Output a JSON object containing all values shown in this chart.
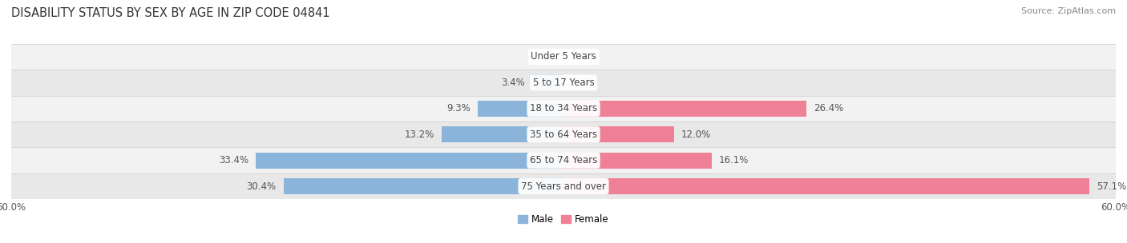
{
  "title": "DISABILITY STATUS BY SEX BY AGE IN ZIP CODE 04841",
  "source": "Source: ZipAtlas.com",
  "categories": [
    "Under 5 Years",
    "5 to 17 Years",
    "18 to 34 Years",
    "35 to 64 Years",
    "65 to 74 Years",
    "75 Years and over"
  ],
  "male_values": [
    0.0,
    3.4,
    9.3,
    13.2,
    33.4,
    30.4
  ],
  "female_values": [
    0.0,
    0.0,
    26.4,
    12.0,
    16.1,
    57.1
  ],
  "male_color": "#8ab4d9",
  "female_color": "#f08098",
  "row_bg_colors": [
    "#f2f2f2",
    "#e8e8e8"
  ],
  "xlim": 60.0,
  "bar_height": 0.62,
  "title_fontsize": 10.5,
  "label_fontsize": 8.5,
  "value_fontsize": 8.5,
  "tick_fontsize": 8.5,
  "source_fontsize": 8.0
}
